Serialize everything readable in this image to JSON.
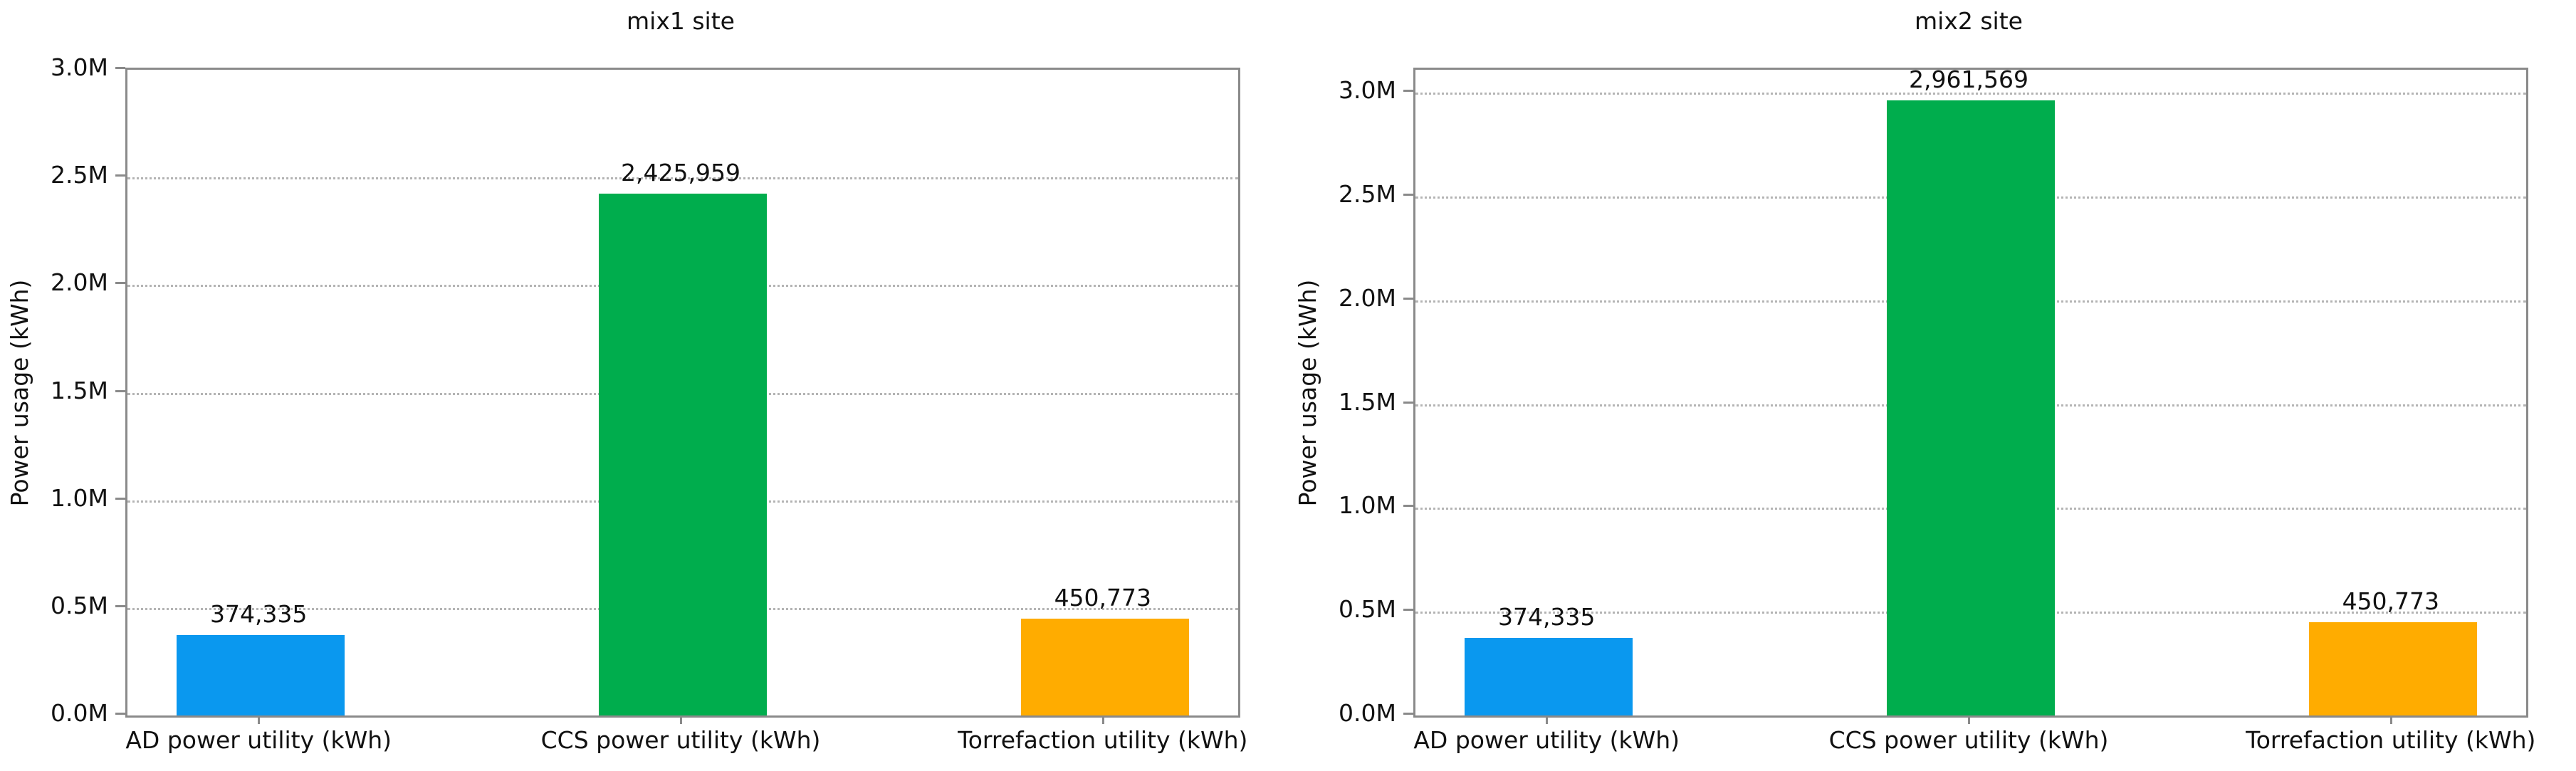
{
  "chart_data": [
    {
      "type": "bar",
      "title": "mix1 site",
      "ylabel": "Power usage (kWh)",
      "xlabel": "",
      "categories": [
        "AD power utility (kWh)",
        "CCS power utility (kWh)",
        "Torrefaction utility (kWh)"
      ],
      "values": [
        374335,
        2425959,
        450773
      ],
      "value_labels": [
        "374,335",
        "2,425,959",
        "450,773"
      ],
      "bar_colors": [
        "#0A98EF",
        "#00AD4D",
        "#FFAC00"
      ],
      "ylim": [
        0,
        3000000
      ],
      "ytick_values": [
        0,
        500000,
        1000000,
        1500000,
        2000000,
        2500000,
        3000000
      ],
      "ytick_labels": [
        "0.0M",
        "0.5M",
        "1.0M",
        "1.5M",
        "2.0M",
        "2.5M",
        "3.0M"
      ],
      "grid": "horizontal-dotted",
      "legend": "none"
    },
    {
      "type": "bar",
      "title": "mix2 site",
      "ylabel": "Power usage (kWh)",
      "xlabel": "",
      "categories": [
        "AD power utility (kWh)",
        "CCS power utility (kWh)",
        "Torrefaction utility (kWh)"
      ],
      "values": [
        374335,
        2961569,
        450773
      ],
      "value_labels": [
        "374,335",
        "2,961,569",
        "450,773"
      ],
      "bar_colors": [
        "#0A98EF",
        "#00AD4D",
        "#FFAC00"
      ],
      "ylim": [
        0,
        3110000
      ],
      "ytick_values": [
        0,
        500000,
        1000000,
        1500000,
        2000000,
        2500000,
        3000000
      ],
      "ytick_labels": [
        "0.0M",
        "0.5M",
        "1.0M",
        "1.5M",
        "2.0M",
        "2.5M",
        "3.0M"
      ],
      "grid": "horizontal-dotted",
      "legend": "none"
    }
  ],
  "style_colors": {
    "spine": "#8a8a8a",
    "grid": "#b4b4b4",
    "text": "#111111",
    "background": "#ffffff"
  }
}
